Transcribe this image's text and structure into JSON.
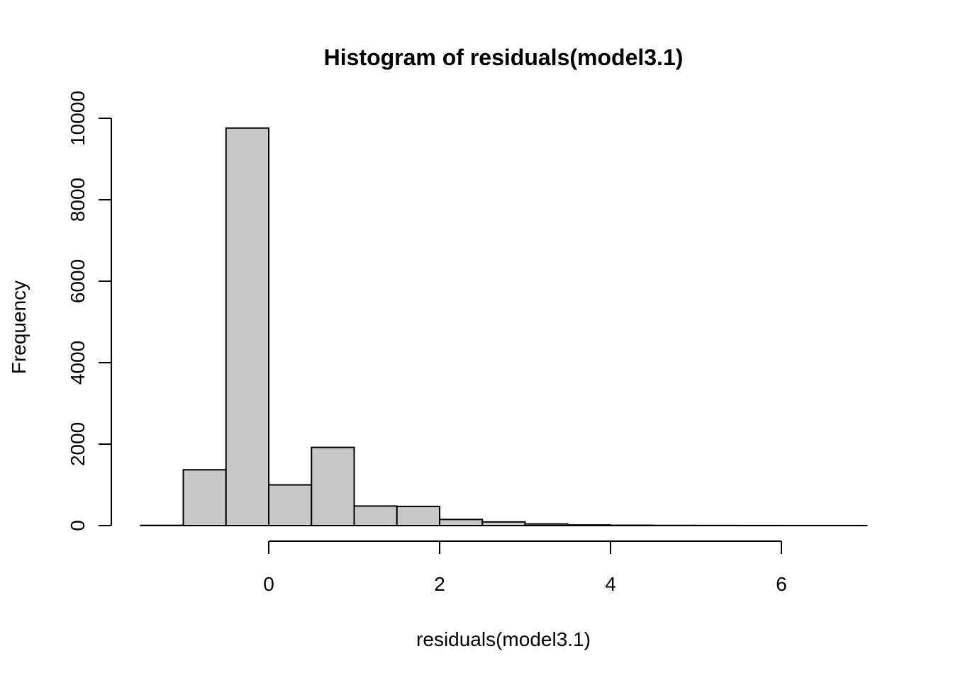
{
  "chart_data": {
    "type": "bar",
    "title": "Histogram of residuals(model3.1)",
    "xlabel": "residuals(model3.1)",
    "ylabel": "Frequency",
    "bins": [
      {
        "from": -1.5,
        "to": -1.0,
        "count": 5
      },
      {
        "from": -1.0,
        "to": -0.5,
        "count": 1370
      },
      {
        "from": -0.5,
        "to": 0.0,
        "count": 9760
      },
      {
        "from": 0.0,
        "to": 0.5,
        "count": 1000
      },
      {
        "from": 0.5,
        "to": 1.0,
        "count": 1920
      },
      {
        "from": 1.0,
        "to": 1.5,
        "count": 480
      },
      {
        "from": 1.5,
        "to": 2.0,
        "count": 470
      },
      {
        "from": 2.0,
        "to": 2.5,
        "count": 150
      },
      {
        "from": 2.5,
        "to": 3.0,
        "count": 90
      },
      {
        "from": 3.0,
        "to": 3.5,
        "count": 40
      },
      {
        "from": 3.5,
        "to": 4.0,
        "count": 15
      },
      {
        "from": 4.0,
        "to": 4.5,
        "count": 8
      },
      {
        "from": 4.5,
        "to": 5.0,
        "count": 4
      },
      {
        "from": 5.0,
        "to": 5.5,
        "count": 3
      },
      {
        "from": 5.5,
        "to": 6.0,
        "count": 2
      },
      {
        "from": 6.0,
        "to": 6.5,
        "count": 1
      },
      {
        "from": 6.5,
        "to": 7.0,
        "count": 1
      }
    ],
    "xlim": [
      -1.5,
      7.0
    ],
    "ylim": [
      0,
      10000
    ],
    "x_ticks": [
      0,
      2,
      4,
      6
    ],
    "y_ticks": [
      0,
      2000,
      4000,
      6000,
      8000,
      10000
    ],
    "grid": false
  }
}
